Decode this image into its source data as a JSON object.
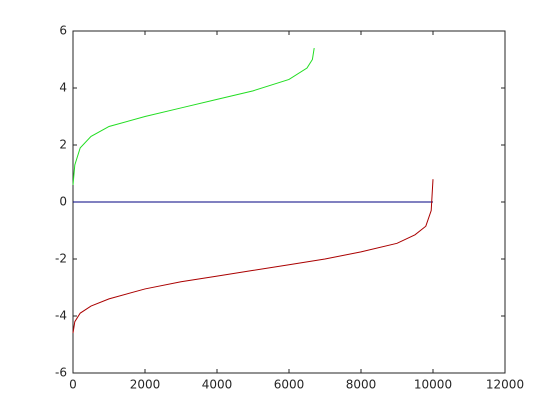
{
  "chart_data": {
    "type": "line",
    "xlim": [
      0,
      12000
    ],
    "xticks": [
      0,
      2000,
      4000,
      6000,
      8000,
      10000,
      12000
    ],
    "ylim": [
      -6,
      6
    ],
    "yticks": [
      -6,
      -4,
      -2,
      0,
      2,
      4,
      6
    ],
    "grid": false,
    "series": [
      {
        "color": "#22dd22",
        "x": [
          0,
          50,
          200,
          500,
          1000,
          2000,
          3000,
          4000,
          5000,
          6000,
          6500,
          6650,
          6700
        ],
        "values": [
          0.6,
          1.3,
          1.9,
          2.3,
          2.65,
          3.0,
          3.3,
          3.6,
          3.9,
          4.3,
          4.7,
          5.0,
          5.4
        ]
      },
      {
        "color": "#000080",
        "x": [
          0,
          10000
        ],
        "values": [
          0,
          0
        ]
      },
      {
        "color": "#aa0000",
        "x": [
          0,
          50,
          200,
          500,
          1000,
          2000,
          3000,
          4000,
          5000,
          6000,
          7000,
          8000,
          9000,
          9500,
          9800,
          9950,
          10000
        ],
        "values": [
          -4.6,
          -4.2,
          -3.9,
          -3.65,
          -3.4,
          -3.05,
          -2.8,
          -2.6,
          -2.4,
          -2.2,
          -2.0,
          -1.75,
          -1.45,
          -1.15,
          -0.85,
          -0.3,
          0.8
        ]
      }
    ]
  }
}
